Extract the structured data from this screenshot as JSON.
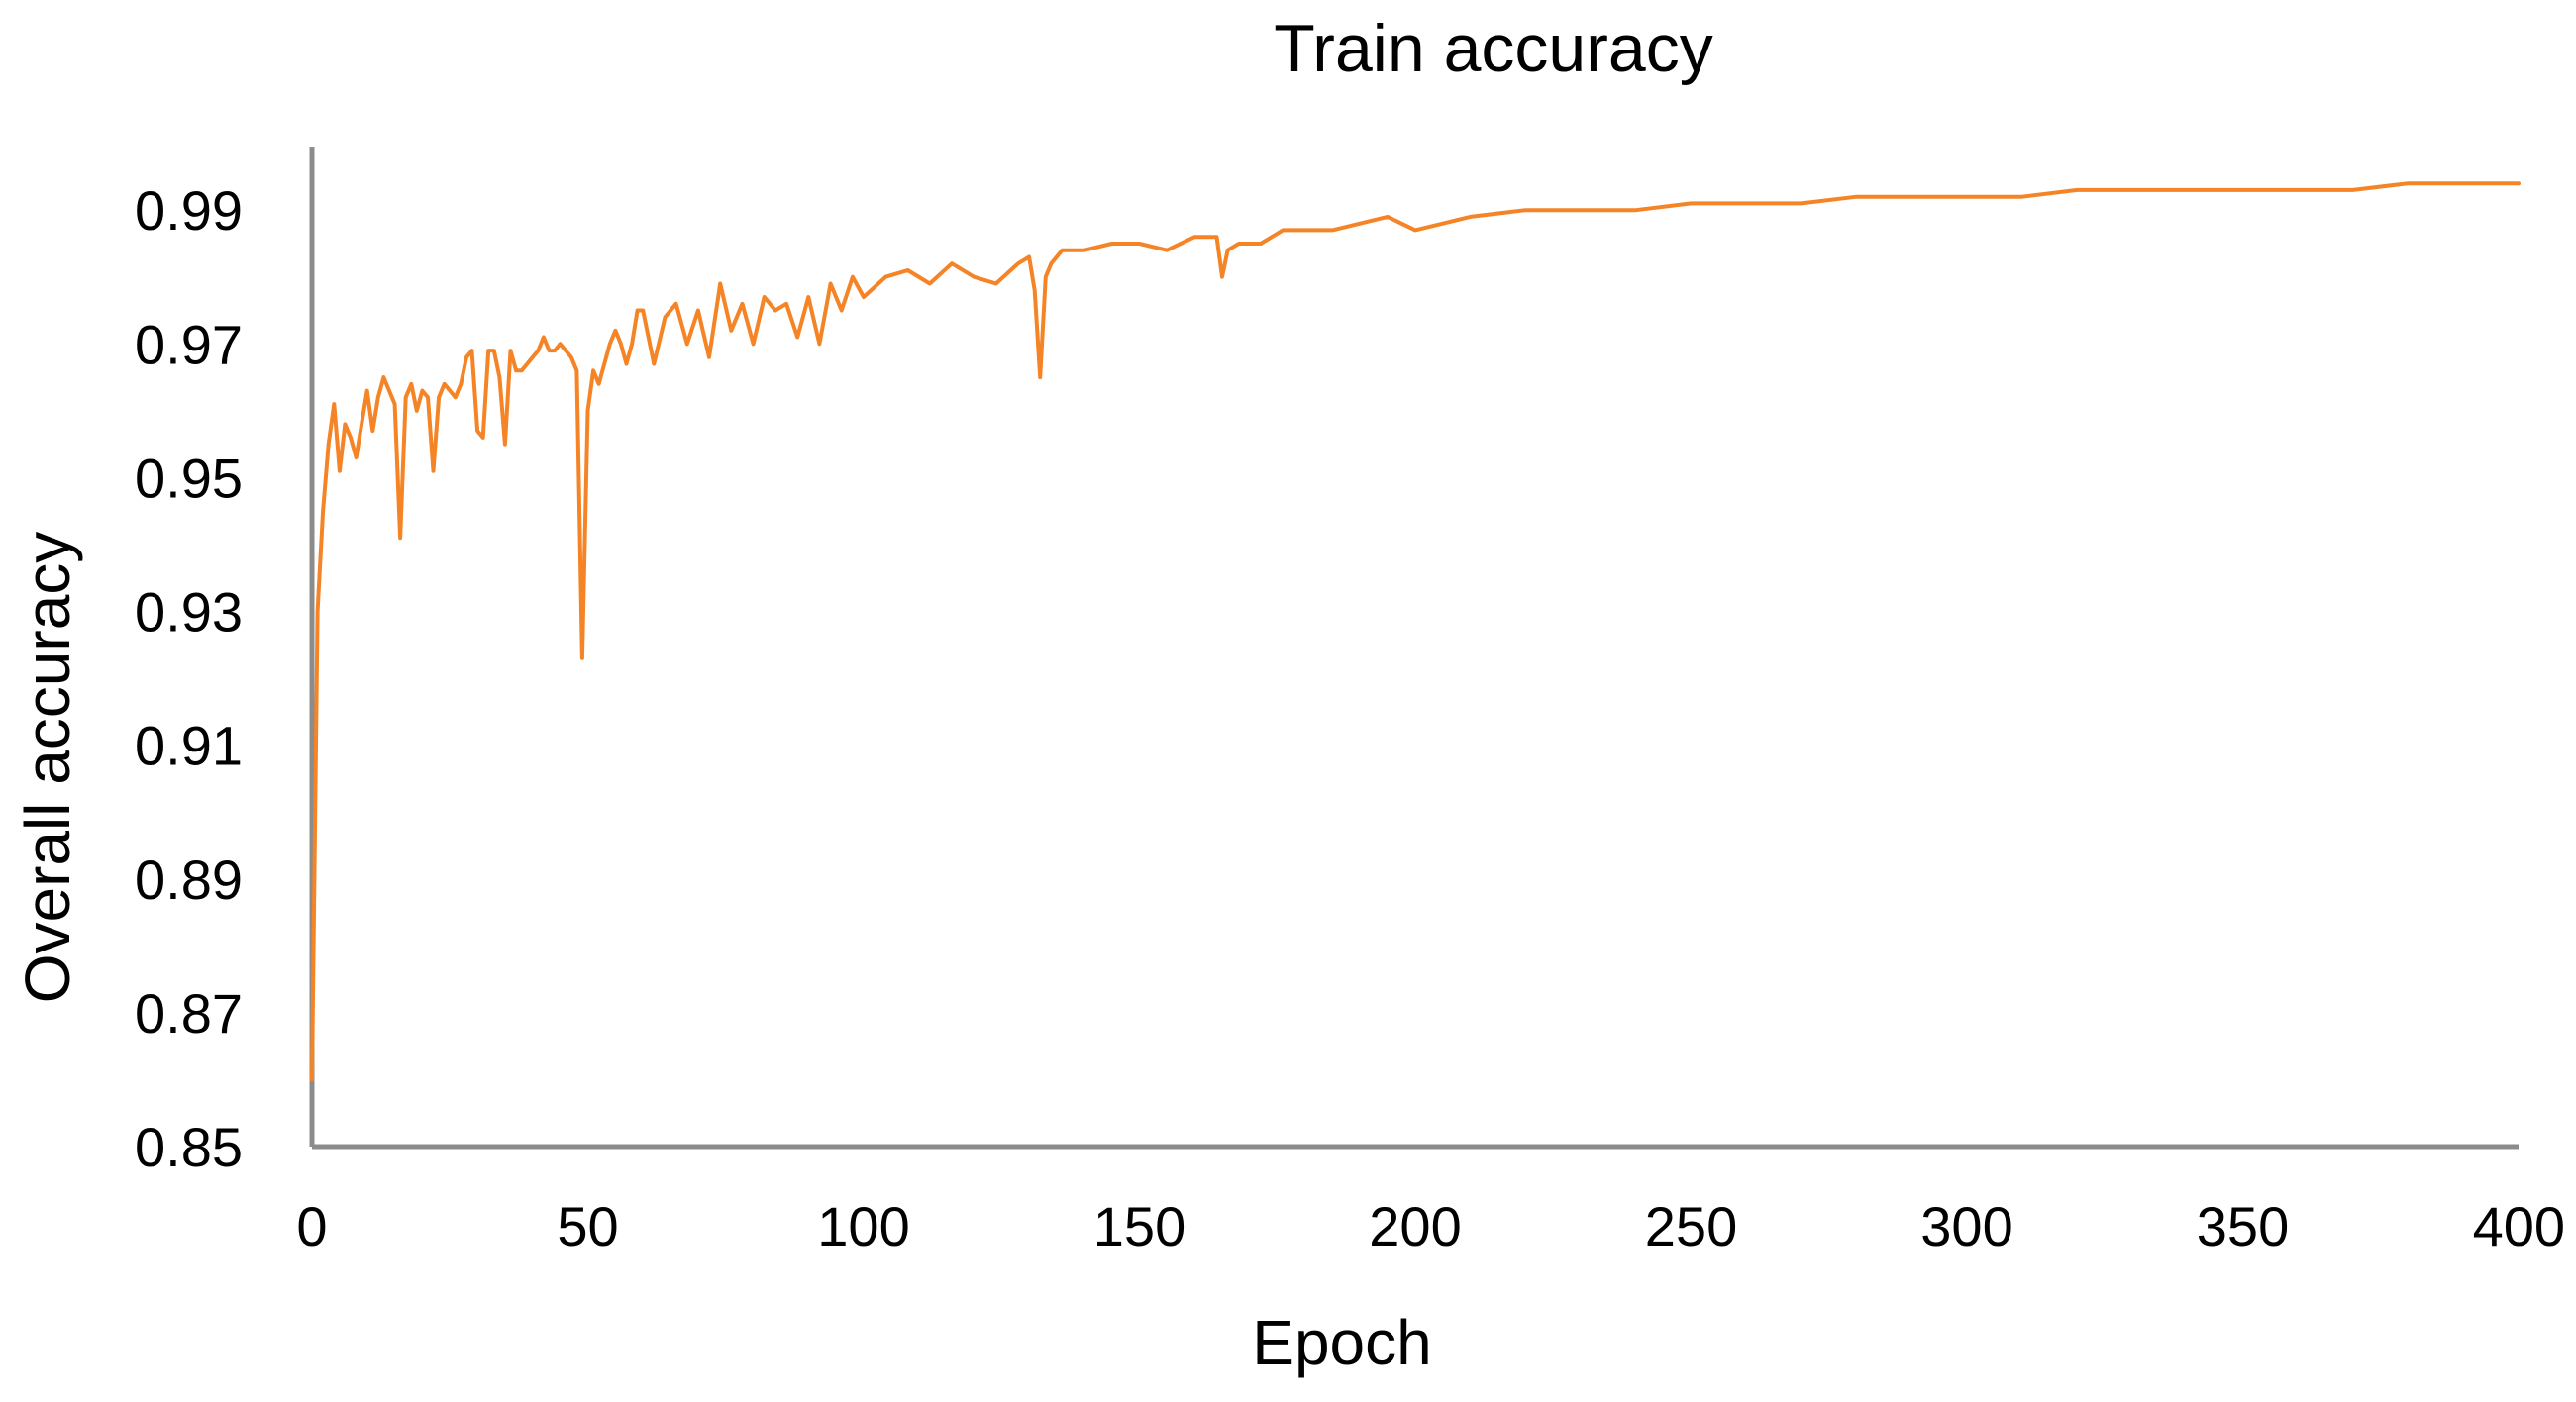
{
  "colors": {
    "background": "#ffffff",
    "series_line": "#F58426",
    "axis_line": "#8c8c8c",
    "text": "#000000"
  },
  "chart_data": {
    "type": "line",
    "title": "Train accuracy",
    "xlabel": "Epoch",
    "ylabel": "Overall accuracy",
    "xlim": [
      0,
      400
    ],
    "ylim": [
      0.85,
      0.9995
    ],
    "grid": false,
    "legend": "none",
    "x_ticks": [
      0,
      50,
      100,
      150,
      200,
      250,
      300,
      350,
      400
    ],
    "x_tick_labels": [
      "0",
      "50",
      "100",
      "150",
      "200",
      "250",
      "300",
      "350",
      "400"
    ],
    "y_ticks": [
      0.85,
      0.87,
      0.89,
      0.91,
      0.93,
      0.95,
      0.97,
      0.99
    ],
    "y_tick_labels": [
      "0.85",
      "0.87",
      "0.89",
      "0.91",
      "0.93",
      "0.95",
      "0.97",
      "0.99"
    ],
    "series": [
      {
        "x": [
          0,
          1,
          2,
          3,
          4,
          5,
          6,
          7,
          8,
          9,
          10,
          11,
          12,
          13,
          14,
          15,
          16,
          17,
          18,
          19,
          20,
          21,
          22,
          23,
          24,
          25,
          26,
          27,
          28,
          29,
          30,
          31,
          32,
          33,
          34,
          35,
          36,
          37,
          38,
          39,
          40,
          41,
          42,
          43,
          44,
          45,
          46,
          47,
          48,
          49,
          50,
          51,
          52,
          53,
          54,
          55,
          56,
          57,
          58,
          59,
          60,
          62,
          64,
          66,
          68,
          70,
          72,
          74,
          76,
          78,
          80,
          82,
          84,
          86,
          88,
          90,
          92,
          94,
          96,
          98,
          100,
          104,
          108,
          112,
          116,
          120,
          124,
          128,
          130,
          131,
          132,
          133,
          134,
          136,
          140,
          145,
          150,
          155,
          160,
          164,
          165,
          166,
          168,
          172,
          176,
          180,
          185,
          190,
          195,
          200,
          210,
          220,
          230,
          240,
          250,
          260,
          270,
          280,
          290,
          300,
          310,
          320,
          330,
          340,
          350,
          360,
          370,
          380,
          390,
          400
        ],
        "values": [
          0.86,
          0.93,
          0.945,
          0.955,
          0.961,
          0.951,
          0.958,
          0.956,
          0.953,
          0.958,
          0.963,
          0.957,
          0.962,
          0.965,
          0.963,
          0.961,
          0.941,
          0.962,
          0.964,
          0.96,
          0.963,
          0.962,
          0.951,
          0.962,
          0.964,
          0.963,
          0.962,
          0.964,
          0.968,
          0.969,
          0.957,
          0.956,
          0.969,
          0.969,
          0.965,
          0.955,
          0.969,
          0.966,
          0.966,
          0.967,
          0.968,
          0.969,
          0.971,
          0.969,
          0.969,
          0.97,
          0.969,
          0.968,
          0.966,
          0.923,
          0.96,
          0.966,
          0.964,
          0.967,
          0.97,
          0.972,
          0.97,
          0.967,
          0.97,
          0.975,
          0.975,
          0.967,
          0.974,
          0.976,
          0.97,
          0.975,
          0.968,
          0.979,
          0.972,
          0.976,
          0.97,
          0.977,
          0.975,
          0.976,
          0.971,
          0.977,
          0.97,
          0.979,
          0.975,
          0.98,
          0.977,
          0.98,
          0.981,
          0.979,
          0.982,
          0.98,
          0.979,
          0.982,
          0.983,
          0.978,
          0.965,
          0.98,
          0.982,
          0.984,
          0.984,
          0.985,
          0.985,
          0.984,
          0.986,
          0.986,
          0.98,
          0.984,
          0.985,
          0.985,
          0.987,
          0.987,
          0.987,
          0.988,
          0.989,
          0.987,
          0.989,
          0.99,
          0.99,
          0.99,
          0.991,
          0.991,
          0.991,
          0.992,
          0.992,
          0.992,
          0.992,
          0.993,
          0.993,
          0.993,
          0.993,
          0.993,
          0.993,
          0.994,
          0.994,
          0.994
        ]
      }
    ]
  }
}
